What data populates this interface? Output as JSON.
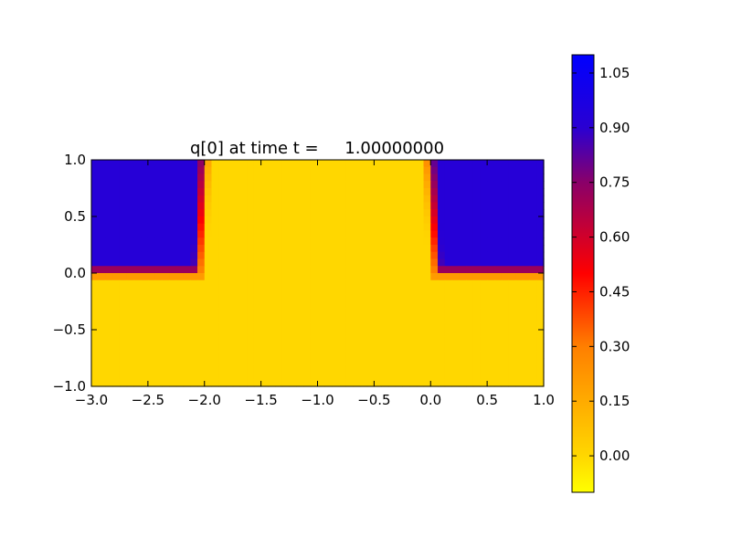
{
  "chart_data": {
    "type": "heatmap",
    "title": "q[0] at time t =     1.00000000",
    "xlabel": "",
    "ylabel": "",
    "xlim": [
      -3.0,
      1.0
    ],
    "ylim": [
      -1.0,
      1.0
    ],
    "x_ticks": [
      -3.0,
      -2.5,
      -2.0,
      -1.5,
      -1.0,
      -0.5,
      0.0,
      0.5,
      1.0
    ],
    "x_tick_labels": [
      "−3.0",
      "−2.5",
      "−2.0",
      "−1.5",
      "−1.0",
      "−0.5",
      "0.0",
      "0.5",
      "1.0"
    ],
    "y_ticks": [
      -1.0,
      -0.5,
      0.0,
      0.5,
      1.0
    ],
    "y_tick_labels": [
      "−1.0",
      "−0.5",
      "0.0",
      "0.5",
      "1.0"
    ],
    "grid": false,
    "colormap": {
      "vmin": -0.1,
      "vmax": 1.1,
      "stops": [
        {
          "value": -0.1,
          "color": "#ffff00"
        },
        {
          "value": 0.0,
          "color": "#ffd700"
        },
        {
          "value": 0.3,
          "color": "#ff7f00"
        },
        {
          "value": 0.5,
          "color": "#ff0000"
        },
        {
          "value": 0.75,
          "color": "#8a0069"
        },
        {
          "value": 0.9,
          "color": "#2a00d2"
        },
        {
          "value": 1.1,
          "color": "#0000ff"
        }
      ]
    },
    "colorbar": {
      "ticks": [
        0.0,
        0.15,
        0.3,
        0.45,
        0.6,
        0.75,
        0.9,
        1.05
      ],
      "tick_labels": [
        "0.00",
        "0.15",
        "0.30",
        "0.45",
        "0.60",
        "0.75",
        "0.90",
        "1.05"
      ]
    },
    "field": {
      "description_free": true,
      "background_value": 0.0,
      "region_value": 0.92,
      "left_region": {
        "x": [
          -3.0,
          -2.05
        ],
        "y": [
          0.0,
          1.0
        ]
      },
      "right_region": {
        "x": [
          0.05,
          1.0
        ],
        "y": [
          0.0,
          1.0
        ]
      },
      "grid_nx": 64,
      "grid_ny": 32
    }
  }
}
